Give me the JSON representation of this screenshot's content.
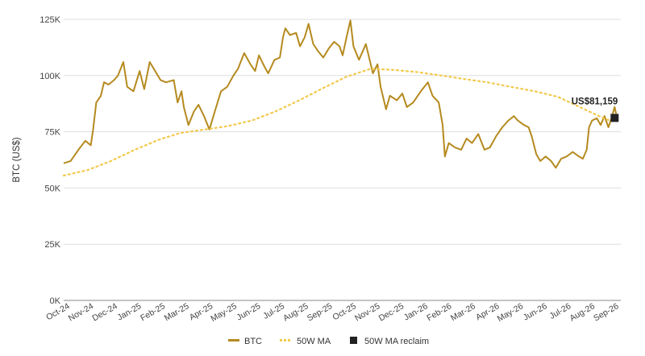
{
  "chart_data": {
    "type": "line",
    "ylabel": "BTC (US$)",
    "ylim": [
      0,
      125000
    ],
    "yticks": [
      {
        "value": 0,
        "label": "0K"
      },
      {
        "value": 25000,
        "label": "25K"
      },
      {
        "value": 50000,
        "label": "50K"
      },
      {
        "value": 75000,
        "label": "75K"
      },
      {
        "value": 100000,
        "label": "100K"
      },
      {
        "value": 125000,
        "label": "125K"
      }
    ],
    "xticks": [
      "Oct-24",
      "Nov-24",
      "Dec-24",
      "Jan-25",
      "Feb-25",
      "Mar-25",
      "Apr-25",
      "May-25",
      "Jun-25",
      "Jul-25",
      "Aug-25",
      "Sep-25",
      "Oct-25",
      "Nov-25",
      "Dec-25",
      "Jan-26",
      "Feb-26",
      "Mar-26",
      "Apr-26",
      "May-26",
      "Jun-26",
      "Jul-26",
      "Aug-26",
      "Sep-26"
    ],
    "grid": true,
    "legend_position": "bottom",
    "colors": {
      "btc": "#b58a1f",
      "ma": "#f2c94c",
      "reclaim": "#222222",
      "grid": "#dddddd"
    },
    "series": [
      {
        "name": "BTC",
        "style": "solid",
        "points": [
          [
            "2024-10-01",
            61000
          ],
          [
            "2024-10-10",
            62000
          ],
          [
            "2024-10-20",
            67000
          ],
          [
            "2024-10-29",
            71000
          ],
          [
            "2024-11-05",
            69000
          ],
          [
            "2024-11-08",
            76000
          ],
          [
            "2024-11-12",
            88000
          ],
          [
            "2024-11-18",
            91000
          ],
          [
            "2024-11-22",
            97000
          ],
          [
            "2024-11-28",
            96000
          ],
          [
            "2024-12-05",
            98000
          ],
          [
            "2024-12-10",
            100000
          ],
          [
            "2024-12-17",
            106000
          ],
          [
            "2024-12-22",
            95000
          ],
          [
            "2024-12-30",
            93000
          ],
          [
            "2025-01-07",
            102000
          ],
          [
            "2025-01-13",
            94000
          ],
          [
            "2025-01-20",
            106000
          ],
          [
            "2025-01-27",
            102000
          ],
          [
            "2025-02-03",
            98000
          ],
          [
            "2025-02-10",
            97000
          ],
          [
            "2025-02-20",
            98000
          ],
          [
            "2025-02-25",
            88000
          ],
          [
            "2025-03-02",
            93000
          ],
          [
            "2025-03-05",
            86000
          ],
          [
            "2025-03-11",
            78000
          ],
          [
            "2025-03-18",
            84000
          ],
          [
            "2025-03-24",
            87000
          ],
          [
            "2025-03-31",
            82000
          ],
          [
            "2025-04-07",
            76000
          ],
          [
            "2025-04-14",
            84000
          ],
          [
            "2025-04-22",
            93000
          ],
          [
            "2025-04-30",
            95000
          ],
          [
            "2025-05-08",
            100000
          ],
          [
            "2025-05-14",
            103000
          ],
          [
            "2025-05-22",
            110000
          ],
          [
            "2025-05-30",
            105000
          ],
          [
            "2025-06-05",
            102000
          ],
          [
            "2025-06-10",
            109000
          ],
          [
            "2025-06-17",
            104000
          ],
          [
            "2025-06-22",
            101000
          ],
          [
            "2025-06-30",
            107000
          ],
          [
            "2025-07-07",
            108000
          ],
          [
            "2025-07-11",
            117000
          ],
          [
            "2025-07-14",
            121000
          ],
          [
            "2025-07-20",
            118000
          ],
          [
            "2025-07-28",
            119000
          ],
          [
            "2025-08-02",
            113000
          ],
          [
            "2025-08-08",
            117000
          ],
          [
            "2025-08-13",
            123000
          ],
          [
            "2025-08-19",
            114000
          ],
          [
            "2025-08-25",
            111000
          ],
          [
            "2025-09-01",
            108000
          ],
          [
            "2025-09-08",
            112000
          ],
          [
            "2025-09-15",
            115000
          ],
          [
            "2025-09-22",
            113000
          ],
          [
            "2025-09-26",
            109000
          ],
          [
            "2025-10-01",
            117000
          ],
          [
            "2025-10-06",
            124500
          ],
          [
            "2025-10-10",
            113000
          ],
          [
            "2025-10-17",
            107000
          ],
          [
            "2025-10-26",
            114000
          ],
          [
            "2025-11-04",
            101000
          ],
          [
            "2025-11-10",
            105000
          ],
          [
            "2025-11-14",
            95000
          ],
          [
            "2025-11-21",
            85000
          ],
          [
            "2025-11-26",
            91000
          ],
          [
            "2025-12-05",
            89000
          ],
          [
            "2025-12-12",
            92000
          ],
          [
            "2025-12-18",
            86000
          ],
          [
            "2025-12-26",
            88000
          ],
          [
            "2026-01-05",
            93000
          ],
          [
            "2026-01-14",
            97000
          ],
          [
            "2026-01-20",
            91000
          ],
          [
            "2026-01-28",
            88000
          ],
          [
            "2026-02-02",
            78000
          ],
          [
            "2026-02-05",
            64000
          ],
          [
            "2026-02-10",
            70000
          ],
          [
            "2026-02-18",
            68000
          ],
          [
            "2026-02-26",
            67000
          ],
          [
            "2026-03-05",
            72000
          ],
          [
            "2026-03-12",
            70000
          ],
          [
            "2026-03-20",
            74000
          ],
          [
            "2026-03-28",
            67000
          ],
          [
            "2026-04-04",
            68000
          ],
          [
            "2026-04-12",
            73000
          ],
          [
            "2026-04-20",
            77000
          ],
          [
            "2026-04-28",
            80000
          ],
          [
            "2026-05-05",
            82000
          ],
          [
            "2026-05-10",
            80000
          ],
          [
            "2026-05-18",
            78000
          ],
          [
            "2026-05-24",
            77000
          ],
          [
            "2026-05-28",
            73000
          ],
          [
            "2026-06-03",
            65000
          ],
          [
            "2026-06-08",
            62000
          ],
          [
            "2026-06-15",
            64000
          ],
          [
            "2026-06-22",
            62000
          ],
          [
            "2026-06-28",
            59000
          ],
          [
            "2026-07-05",
            63000
          ],
          [
            "2026-07-12",
            64000
          ],
          [
            "2026-07-20",
            66000
          ],
          [
            "2026-07-28",
            64000
          ],
          [
            "2026-08-02",
            63000
          ],
          [
            "2026-08-07",
            67000
          ],
          [
            "2026-08-10",
            77000
          ],
          [
            "2026-08-14",
            80000
          ],
          [
            "2026-08-20",
            81000
          ],
          [
            "2026-08-25",
            78000
          ],
          [
            "2026-08-30",
            82000
          ],
          [
            "2026-09-04",
            77000
          ],
          [
            "2026-09-08",
            81000
          ],
          [
            "2026-09-12",
            86000
          ],
          [
            "2026-09-14",
            83000
          ]
        ]
      },
      {
        "name": "50W MA",
        "style": "dotted",
        "points": [
          [
            "2024-10-01",
            55500
          ],
          [
            "2024-11-01",
            58000
          ],
          [
            "2024-12-01",
            62000
          ],
          [
            "2025-01-01",
            67000
          ],
          [
            "2025-02-01",
            71500
          ],
          [
            "2025-03-01",
            74500
          ],
          [
            "2025-04-01",
            76000
          ],
          [
            "2025-05-01",
            77500
          ],
          [
            "2025-06-01",
            80000
          ],
          [
            "2025-07-01",
            84000
          ],
          [
            "2025-08-01",
            89000
          ],
          [
            "2025-09-01",
            94500
          ],
          [
            "2025-10-01",
            99500
          ],
          [
            "2025-11-01",
            103000
          ],
          [
            "2025-12-01",
            102500
          ],
          [
            "2026-01-01",
            101500
          ],
          [
            "2026-02-01",
            100000
          ],
          [
            "2026-03-01",
            98500
          ],
          [
            "2026-04-01",
            97000
          ],
          [
            "2026-05-01",
            95000
          ],
          [
            "2026-06-01",
            93000
          ],
          [
            "2026-07-01",
            90500
          ],
          [
            "2026-08-01",
            85500
          ],
          [
            "2026-09-01",
            80500
          ],
          [
            "2026-09-14",
            79500
          ]
        ]
      }
    ],
    "reclaim_marker": {
      "name": "50W MA reclaim",
      "date": "2026-09-12",
      "value": 81159
    },
    "annotation": "US$81,159"
  }
}
